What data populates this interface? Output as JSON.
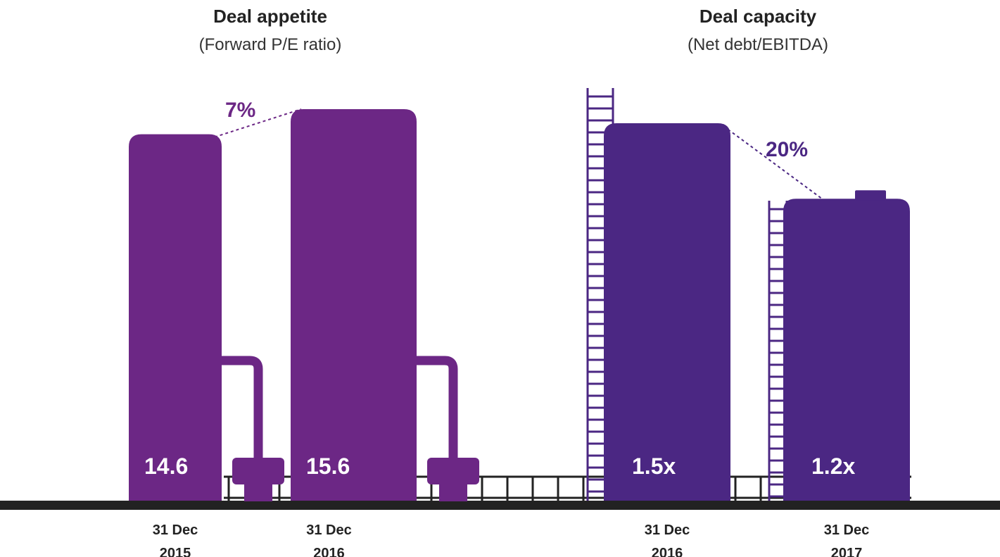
{
  "chart_data": [
    {
      "type": "bar",
      "title": "Deal appetite",
      "subtitle": "(Forward P/E ratio)",
      "categories": [
        "31 Dec 2015",
        "31 Dec 2016"
      ],
      "values": [
        14.6,
        15.6
      ],
      "color": "#6c2785",
      "annotation": "7%"
    },
    {
      "type": "bar",
      "title": "Deal capacity",
      "subtitle": "(Net debt/EBITDA)",
      "categories": [
        "31 Dec 2016",
        "31 Dec 2017"
      ],
      "values": [
        1.5,
        1.2
      ],
      "value_labels": [
        "1.5x",
        "1.2x"
      ],
      "color": "#4b2783",
      "annotation": "20%"
    }
  ]
}
